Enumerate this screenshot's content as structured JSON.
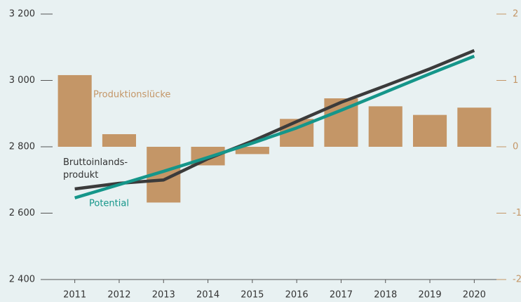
{
  "chart_data": {
    "type": "bar-line",
    "categories": [
      "2011",
      "2012",
      "2013",
      "2014",
      "2015",
      "2016",
      "2017",
      "2018",
      "2019",
      "2020"
    ],
    "series": [
      {
        "name": "Produktionslücke",
        "type": "bar",
        "axis": "y2",
        "color": "#c49667",
        "values": [
          1.08,
          0.19,
          -0.84,
          -0.28,
          -0.11,
          0.42,
          0.73,
          0.61,
          0.48,
          0.59
        ]
      },
      {
        "name": "Bruttoinlands-\nprodukt",
        "type": "line",
        "axis": "y",
        "color": "#3b3b3b",
        "values": [
          2673,
          2690,
          2700,
          2764,
          2817,
          2876,
          2934,
          2984,
          3035,
          3090
        ]
      },
      {
        "name": "Potential",
        "type": "line",
        "axis": "y",
        "color": "#15968a",
        "values": [
          2646,
          2686,
          2726,
          2768,
          2811,
          2857,
          2910,
          2965,
          3020,
          3073
        ]
      }
    ],
    "ylim": [
      2400,
      3200
    ],
    "yticks": [
      {
        "value": 2400,
        "label": "2 400"
      },
      {
        "value": 2600,
        "label": "2 600"
      },
      {
        "value": 2800,
        "label": "2 800"
      },
      {
        "value": 3000,
        "label": "3 000"
      },
      {
        "value": 3200,
        "label": "3 200"
      }
    ],
    "y2lim": [
      -2,
      2
    ],
    "y2ticks": [
      -2,
      -1,
      0,
      1,
      2
    ]
  }
}
